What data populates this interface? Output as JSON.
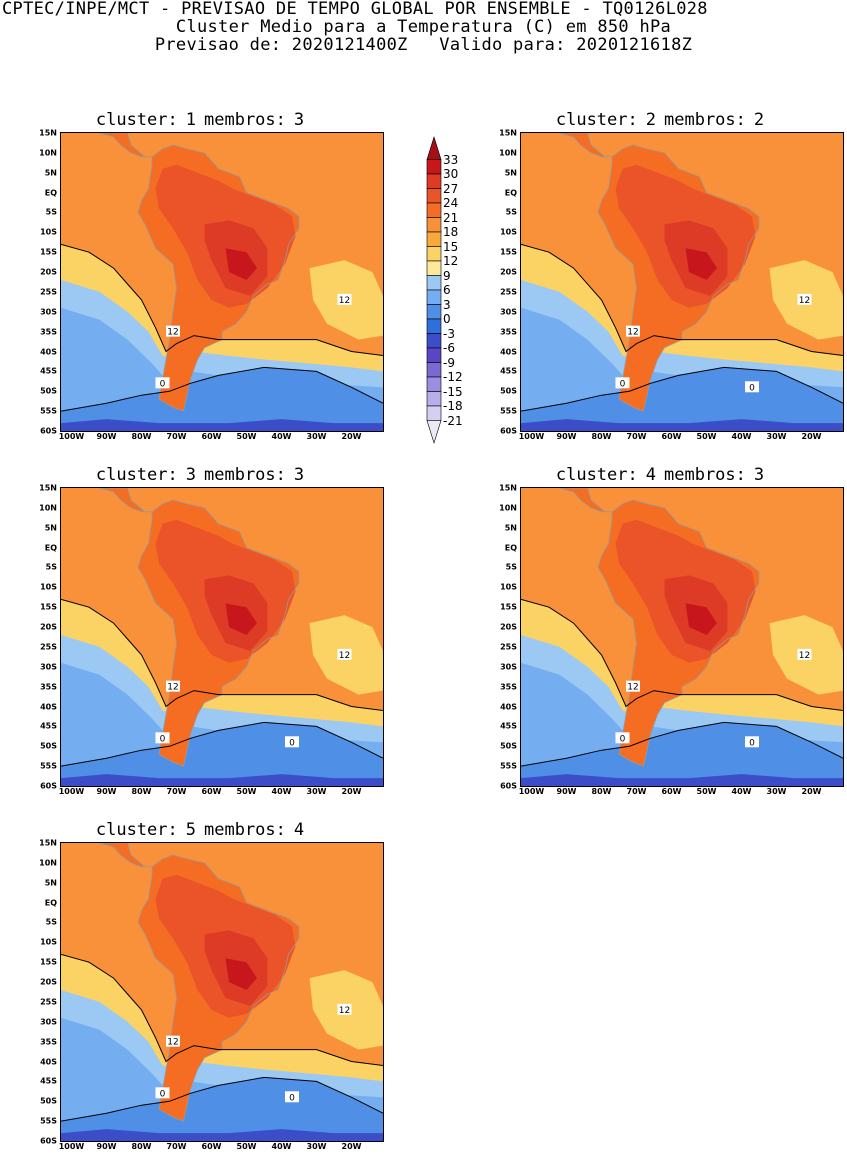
{
  "header": {
    "line1": "CPTEC/INPE/MCT - PREVISAO DE TEMPO GLOBAL POR ENSEMBLE - TQ0126L028",
    "line2": "Cluster Medio para a Temperatura (C) em 850 hPa",
    "line3": "Previsao de: 2020121400Z   Valido para: 2020121618Z"
  },
  "axes": {
    "lat_labels": [
      "15N",
      "10N",
      "5N",
      "EQ",
      "5S",
      "10S",
      "15S",
      "20S",
      "25S",
      "30S",
      "35S",
      "40S",
      "45S",
      "50S",
      "55S",
      "60S"
    ],
    "lon_labels": [
      "100W",
      "90W",
      "80W",
      "70W",
      "60W",
      "50W",
      "40W",
      "30W",
      "20W"
    ]
  },
  "colorbar": {
    "labels": [
      "33",
      "30",
      "27",
      "24",
      "21",
      "18",
      "15",
      "12",
      "9",
      "6",
      "3",
      "0",
      "-3",
      "-6",
      "-9",
      "-12",
      "-15",
      "-18",
      "-21"
    ],
    "colors": [
      "#a50f15",
      "#c8161d",
      "#dd3b26",
      "#ea5428",
      "#f46d22",
      "#f8913a",
      "#f9a83b",
      "#fbd264",
      "#fde99a",
      "#9cc9f3",
      "#75aef0",
      "#4f8fe6",
      "#2f6fdb",
      "#3b4ec8",
      "#5b45c2",
      "#7b68d1",
      "#9b8de0",
      "#b8aeea",
      "#d6cff2",
      "#ece8f8"
    ]
  },
  "panels": [
    {
      "cluster_label": "cluster:",
      "cluster": "1",
      "members_label": "membros:",
      "members": "3",
      "contour_labels": [
        "12",
        "12",
        "0"
      ]
    },
    {
      "cluster_label": "cluster:",
      "cluster": "2",
      "members_label": "membros:",
      "members": "2",
      "contour_labels": [
        "12",
        "12",
        "0",
        "0"
      ]
    },
    {
      "cluster_label": "cluster:",
      "cluster": "3",
      "members_label": "membros:",
      "members": "3",
      "contour_labels": [
        "12",
        "12",
        "0",
        "0"
      ]
    },
    {
      "cluster_label": "cluster:",
      "cluster": "4",
      "members_label": "membros:",
      "members": "3",
      "contour_labels": [
        "12",
        "12",
        "0",
        "0"
      ]
    },
    {
      "cluster_label": "cluster:",
      "cluster": "5",
      "members_label": "membros:",
      "members": "4",
      "contour_labels": [
        "12",
        "12",
        "0",
        "0"
      ]
    }
  ]
}
